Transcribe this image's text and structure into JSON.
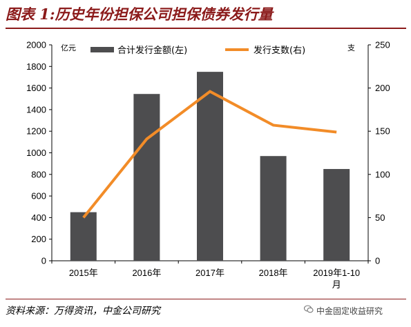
{
  "title": "图表 1:历史年份担保公司担保债券发行量",
  "source": "资料来源：万得资讯，中金公司研究",
  "watermark": "中金固定收益研究",
  "colors": {
    "bar": "#4d4d4f",
    "line": "#f28c28",
    "title": "#8b1a1a"
  },
  "chart_data": {
    "type": "bar",
    "categories": [
      "2015年",
      "2016年",
      "2017年",
      "2018年",
      "2019年1-10月"
    ],
    "category_lines": [
      [
        "2015年"
      ],
      [
        "2016年"
      ],
      [
        "2017年"
      ],
      [
        "2018年"
      ],
      [
        "2019年1-10",
        "月"
      ]
    ],
    "series": [
      {
        "name": "合计发行金额(左)",
        "type": "bar",
        "axis": "left",
        "values": [
          450,
          1545,
          1750,
          970,
          850
        ]
      },
      {
        "name": "发行支数(右)",
        "type": "line",
        "axis": "right",
        "values": [
          50,
          141,
          196,
          157,
          149
        ]
      }
    ],
    "y_left": {
      "unit": "亿元",
      "ylim": [
        0,
        2000
      ],
      "ticks": [
        0,
        200,
        400,
        600,
        800,
        1000,
        1200,
        1400,
        1600,
        1800,
        2000
      ]
    },
    "y_right": {
      "unit": "支",
      "ylim": [
        0,
        250
      ],
      "ticks": [
        0,
        50,
        100,
        150,
        200,
        250
      ]
    },
    "legend": "top-center",
    "grid": false
  }
}
